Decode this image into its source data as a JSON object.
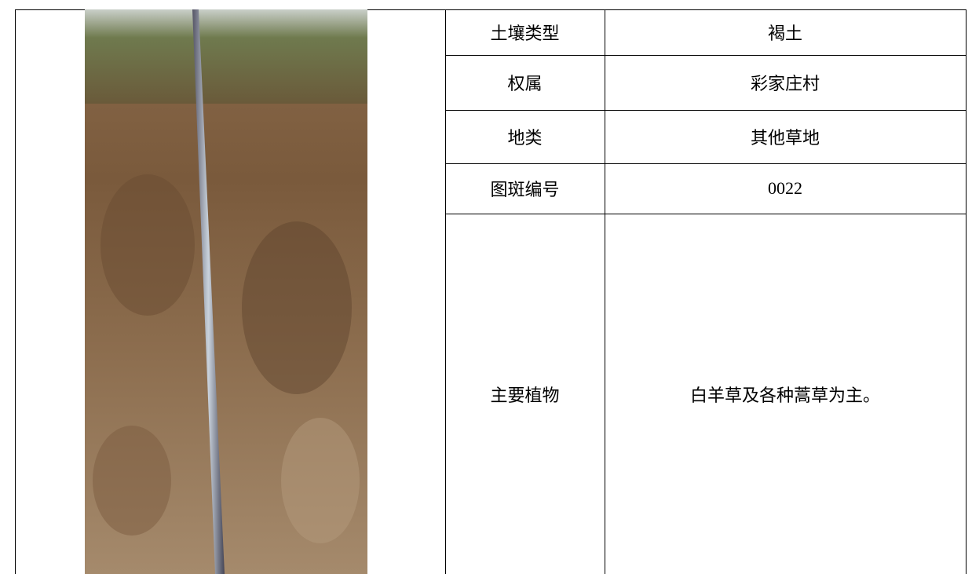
{
  "table": {
    "rows": [
      [
        "土壤类型",
        "褐土"
      ],
      [
        "权属",
        "彩家庄村"
      ],
      [
        "地类",
        "其他草地"
      ],
      [
        "图斑编号",
        "0022"
      ],
      [
        "主要植物",
        "白羊草及各种蒿草为主。"
      ]
    ]
  }
}
